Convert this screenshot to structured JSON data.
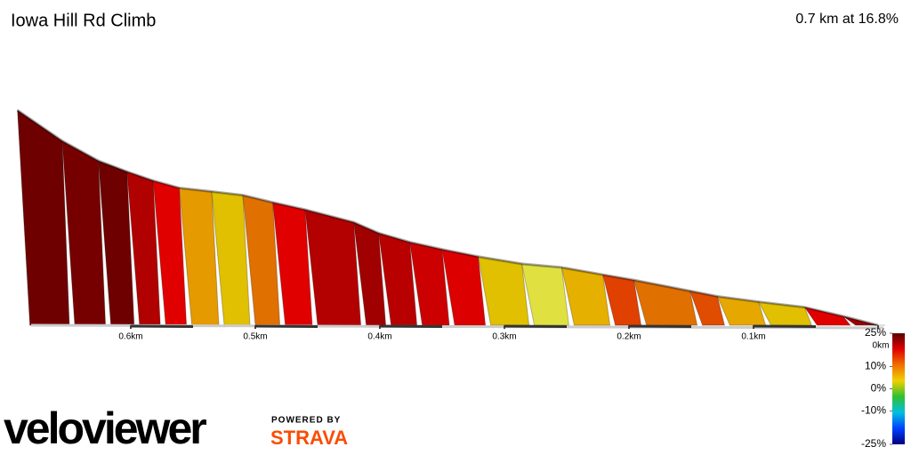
{
  "chart_data": {
    "type": "profile",
    "title": "Iowa Hill Rd Climb",
    "subtitle": "0.7 km at 16.8%",
    "x": [
      0.691,
      0.655,
      0.626,
      0.603,
      0.582,
      0.561,
      0.535,
      0.51,
      0.486,
      0.46,
      0.421,
      0.401,
      0.376,
      0.35,
      0.321,
      0.286,
      0.254,
      0.221,
      0.196,
      0.151,
      0.129,
      0.096,
      0.059,
      0.028,
      0
    ],
    "elevation": [
      119,
      102,
      91,
      85,
      80,
      76,
      74,
      72,
      68,
      64,
      57,
      51,
      46,
      42,
      38,
      34,
      32,
      28,
      25,
      19,
      16,
      13,
      10,
      5,
      0
    ],
    "segment_colors": [
      "#6e0000",
      "#760000",
      "#6e0000",
      "#b00000",
      "#e00000",
      "#e59a00",
      "#e0c000",
      "#e07000",
      "#e00000",
      "#b30000",
      "#a00000",
      "#b80000",
      "#cc0000",
      "#dd0000",
      "#e0c000",
      "#e0e040",
      "#e6b000",
      "#e04000",
      "#e07000",
      "#e04c00",
      "#e6a800",
      "#e0c000",
      "#e00000",
      "#a00000"
    ],
    "xlim": [
      0.7,
      0
    ],
    "xticks": [
      {
        "value": 0.6,
        "label": "0.6km"
      },
      {
        "value": 0.5,
        "label": "0.5km"
      },
      {
        "value": 0.4,
        "label": "0.4km"
      },
      {
        "value": 0.3,
        "label": "0.3km"
      },
      {
        "value": 0.2,
        "label": "0.2km"
      },
      {
        "value": 0.1,
        "label": "0.1km"
      },
      {
        "value": 0,
        "label": "0km"
      }
    ],
    "colorbar": {
      "lim": [
        25,
        -25
      ],
      "ticks": [
        {
          "value": 25,
          "label": "25%"
        },
        {
          "value": 10,
          "label": "10%"
        },
        {
          "value": 0,
          "label": "0%"
        },
        {
          "value": -10,
          "label": "-10%"
        },
        {
          "value": -25,
          "label": "-25%"
        }
      ],
      "colors": [
        "#5a0000",
        "#e00000",
        "#f07000",
        "#f0d000",
        "#30c030",
        "#00c0e0",
        "#0040ff",
        "#000080"
      ]
    }
  },
  "branding": {
    "logo": "veloviewer",
    "powered": "POWERED BY",
    "strava": "STRAVA"
  }
}
